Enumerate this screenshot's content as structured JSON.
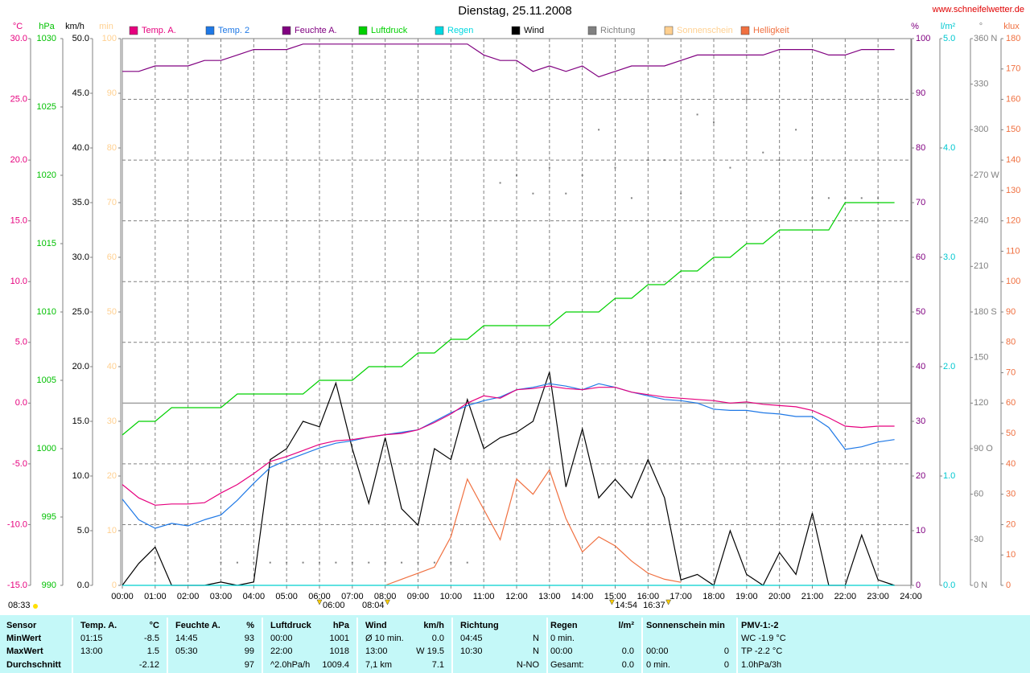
{
  "chart_data": {
    "type": "line",
    "title": "Dienstag, 25.11.2008",
    "source": "www.schneifelwetter.de",
    "grid": true,
    "xlim": [
      0,
      24
    ],
    "xticks": [
      {
        "value": 0,
        "label": "00:00"
      },
      {
        "value": 1,
        "label": "01:00"
      },
      {
        "value": 2,
        "label": "02:00"
      },
      {
        "value": 3,
        "label": "03:00"
      },
      {
        "value": 4,
        "label": "04:00"
      },
      {
        "value": 5,
        "label": "05:00"
      },
      {
        "value": 6,
        "label": "06:00"
      },
      {
        "value": 7,
        "label": "07:00"
      },
      {
        "value": 8,
        "label": "08:00"
      },
      {
        "value": 9,
        "label": "09:00"
      },
      {
        "value": 10,
        "label": "10:00"
      },
      {
        "value": 11,
        "label": "11:00"
      },
      {
        "value": 12,
        "label": "12:00"
      },
      {
        "value": 13,
        "label": "13:00"
      },
      {
        "value": 14,
        "label": "14:00"
      },
      {
        "value": 15,
        "label": "15:00"
      },
      {
        "value": 16,
        "label": "16:00"
      },
      {
        "value": 17,
        "label": "17:00"
      },
      {
        "value": 18,
        "label": "18:00"
      },
      {
        "value": 19,
        "label": "19:00"
      },
      {
        "value": 20,
        "label": "20:00"
      },
      {
        "value": 21,
        "label": "21:00"
      },
      {
        "value": 22,
        "label": "22:00"
      },
      {
        "value": 23,
        "label": "23:00"
      },
      {
        "value": 24,
        "label": "24:00"
      }
    ],
    "x": [
      0,
      0.5,
      1,
      1.5,
      2,
      2.5,
      3,
      3.5,
      4,
      4.5,
      5,
      5.5,
      6,
      6.5,
      7,
      7.5,
      8,
      8.5,
      9,
      9.5,
      10,
      10.5,
      11,
      11.5,
      12,
      12.5,
      13,
      13.5,
      14,
      14.5,
      15,
      15.5,
      16,
      16.5,
      17,
      17.5,
      18,
      18.5,
      19,
      19.5,
      20,
      20.5,
      21,
      21.5,
      22,
      22.5,
      23,
      23.5
    ],
    "axes": [
      {
        "unit": "°C",
        "side": "left",
        "color": "#e6007e",
        "lim": [
          -15,
          30
        ],
        "ticks": [
          {
            "value": -15,
            "label": "-15.0"
          },
          {
            "value": -10,
            "label": "-10.0"
          },
          {
            "value": -5,
            "label": "-5.0"
          },
          {
            "value": 0,
            "label": "0.0"
          },
          {
            "value": 5,
            "label": "5.0"
          },
          {
            "value": 10,
            "label": "10.0"
          },
          {
            "value": 15,
            "label": "15.0"
          },
          {
            "value": 20,
            "label": "20.0"
          },
          {
            "value": 25,
            "label": "25.0"
          },
          {
            "value": 30,
            "label": "30.0"
          }
        ]
      },
      {
        "unit": "hPa",
        "side": "left",
        "color": "#00c000",
        "lim": [
          990,
          1030
        ],
        "ticks": [
          990,
          995,
          1000,
          1005,
          1010,
          1015,
          1020,
          1025,
          1030
        ]
      },
      {
        "unit": "km/h",
        "side": "left",
        "color": "#000000",
        "lim": [
          0,
          50
        ],
        "ticks": [
          {
            "value": 0,
            "label": "0.0"
          },
          {
            "value": 5,
            "label": "5.0"
          },
          {
            "value": 10,
            "label": "10.0"
          },
          {
            "value": 15,
            "label": "15.0"
          },
          {
            "value": 20,
            "label": "20.0"
          },
          {
            "value": 25,
            "label": "25.0"
          },
          {
            "value": 30,
            "label": "30.0"
          },
          {
            "value": 35,
            "label": "35.0"
          },
          {
            "value": 40,
            "label": "40.0"
          },
          {
            "value": 45,
            "label": "45.0"
          },
          {
            "value": 50,
            "label": "50.0"
          }
        ]
      },
      {
        "unit": "min",
        "side": "left",
        "color": "#ffd090",
        "lim": [
          0,
          100
        ],
        "ticks": [
          0,
          10,
          20,
          30,
          40,
          50,
          60,
          70,
          80,
          90,
          100
        ]
      },
      {
        "unit": "%",
        "side": "right",
        "color": "#800080",
        "lim": [
          0,
          100
        ],
        "ticks": [
          0,
          10,
          20,
          30,
          40,
          50,
          60,
          70,
          80,
          90,
          100
        ]
      },
      {
        "unit": "l/m²",
        "side": "right",
        "color": "#00c8d0",
        "lim": [
          0,
          5
        ],
        "ticks": [
          {
            "value": 0,
            "label": "0.0"
          },
          {
            "value": 1,
            "label": "1.0"
          },
          {
            "value": 2,
            "label": "2.0"
          },
          {
            "value": 3,
            "label": "3.0"
          },
          {
            "value": 4,
            "label": "4.0"
          },
          {
            "value": 5,
            "label": "5.0"
          }
        ]
      },
      {
        "unit": "°",
        "side": "right",
        "color": "#808080",
        "lim": [
          0,
          360
        ],
        "ticks": [
          {
            "value": 0,
            "label": "0 N"
          },
          30,
          60,
          {
            "value": 90,
            "label": "90 O"
          },
          120,
          150,
          {
            "value": 180,
            "label": "180 S"
          },
          210,
          240,
          {
            "value": 270,
            "label": "270 W"
          },
          300,
          330,
          {
            "value": 360,
            "label": "360 N"
          }
        ]
      },
      {
        "unit": "klux",
        "side": "right",
        "color": "#f07040",
        "lim": [
          0,
          180
        ],
        "ticks": [
          0,
          10,
          20,
          30,
          40,
          50,
          60,
          70,
          80,
          90,
          100,
          110,
          120,
          130,
          140,
          150,
          160,
          170,
          180
        ]
      }
    ],
    "series": [
      {
        "name": "Temp. A.",
        "color": "#e6007e",
        "axis": "°C",
        "style": "line",
        "values": [
          -6.7,
          -7.8,
          -8.4,
          -8.3,
          -8.3,
          -8.2,
          -7.4,
          -6.7,
          -5.8,
          -4.8,
          -4.4,
          -3.9,
          -3.4,
          -3.1,
          -3.0,
          -2.8,
          -2.6,
          -2.5,
          -2.2,
          -1.6,
          -0.9,
          0.0,
          0.6,
          0.4,
          1.1,
          1.2,
          1.4,
          1.2,
          1.1,
          1.3,
          1.3,
          0.9,
          0.7,
          0.5,
          0.4,
          0.3,
          0.2,
          0.0,
          0.1,
          -0.1,
          -0.2,
          -0.3,
          -0.6,
          -1.2,
          -1.9,
          -2.0,
          -1.9,
          -1.9
        ]
      },
      {
        "name": "Temp. 2",
        "color": "#1e78e6",
        "axis": "°C",
        "style": "line",
        "values": [
          -7.9,
          -9.6,
          -10.3,
          -9.9,
          -10.1,
          -9.6,
          -9.2,
          -8.0,
          -6.6,
          -5.3,
          -4.7,
          -4.2,
          -3.7,
          -3.3,
          -3.1,
          -2.8,
          -2.6,
          -2.4,
          -2.2,
          -1.5,
          -0.8,
          -0.2,
          0.2,
          0.5,
          1.1,
          1.3,
          1.6,
          1.4,
          1.1,
          1.6,
          1.3,
          0.9,
          0.6,
          0.3,
          0.2,
          0.0,
          -0.5,
          -0.6,
          -0.6,
          -0.8,
          -0.9,
          -1.1,
          -1.1,
          -2.0,
          -3.8,
          -3.6,
          -3.2,
          -3.0
        ]
      },
      {
        "name": "Feuchte A.",
        "color": "#800080",
        "axis": "%",
        "style": "line",
        "values": [
          94,
          94,
          95,
          95,
          95,
          96,
          96,
          97,
          98,
          98,
          98,
          99,
          99,
          99,
          99,
          99,
          99,
          99,
          99,
          99,
          99,
          99,
          97,
          96,
          96,
          94,
          95,
          94,
          95,
          93,
          94,
          95,
          95,
          95,
          96,
          97,
          97,
          97,
          97,
          97,
          98,
          98,
          98,
          97,
          97,
          98,
          98,
          98
        ]
      },
      {
        "name": "Luftdruck",
        "color": "#00d000",
        "axis": "hPa",
        "style": "line",
        "values": [
          1001,
          1002,
          1002,
          1003,
          1003,
          1003,
          1003,
          1004,
          1004,
          1004,
          1004,
          1004,
          1005,
          1005,
          1005,
          1006,
          1006,
          1006,
          1007,
          1007,
          1008,
          1008,
          1009,
          1009,
          1009,
          1009,
          1009,
          1010,
          1010,
          1010,
          1011,
          1011,
          1012,
          1012,
          1013,
          1013,
          1014,
          1014,
          1015,
          1015,
          1016,
          1016,
          1016,
          1016,
          1018,
          1018,
          1018,
          1018
        ]
      },
      {
        "name": "Regen",
        "color": "#00d8e0",
        "axis": "l/m²",
        "style": "line",
        "values": [
          0,
          0,
          0,
          0,
          0,
          0,
          0,
          0,
          0,
          0,
          0,
          0,
          0,
          0,
          0,
          0,
          0,
          0,
          0,
          0,
          0,
          0,
          0,
          0,
          0,
          0,
          0,
          0,
          0,
          0,
          0,
          0,
          0,
          0,
          0,
          0,
          0,
          0,
          0,
          0,
          0,
          0,
          0,
          0,
          0,
          0,
          0,
          0
        ]
      },
      {
        "name": "Wind",
        "color": "#000000",
        "axis": "km/h",
        "style": "line",
        "values": [
          0,
          2,
          3.5,
          0,
          0,
          0,
          0.3,
          0,
          0.3,
          11.5,
          12.5,
          15,
          14.5,
          18.5,
          12.5,
          7.5,
          13.5,
          7,
          5.5,
          12.5,
          11.5,
          17,
          12.5,
          13.5,
          14,
          15,
          19.5,
          9,
          14.3,
          8,
          9.7,
          8,
          11.5,
          8,
          0.5,
          1,
          0,
          5,
          1,
          0,
          3,
          1,
          6.6,
          0,
          0,
          4.6,
          0.5,
          0
        ]
      },
      {
        "name": "Richtung",
        "color": "#808080",
        "axis": "°",
        "style": "dots",
        "values": [
          null,
          null,
          15,
          null,
          null,
          null,
          15,
          15,
          15,
          15,
          15,
          15,
          15,
          15,
          15,
          15,
          15,
          15,
          15,
          15,
          15,
          15,
          null,
          265,
          270,
          258,
          275,
          258,
          270,
          300,
          275,
          255,
          280,
          280,
          258,
          310,
          305,
          275,
          320,
          285,
          280,
          300,
          255,
          255,
          255,
          255,
          255,
          null
        ]
      },
      {
        "name": "Sonnenschein",
        "color": "#ffd090",
        "axis": "min",
        "style": "line",
        "values": [
          0,
          0,
          0,
          0,
          0,
          0,
          0,
          0,
          0,
          0,
          0,
          0,
          0,
          0,
          0,
          0,
          0,
          0,
          0,
          0,
          0,
          0,
          0,
          0,
          0,
          0,
          0,
          0,
          0,
          0,
          0,
          0,
          0,
          0,
          0,
          0,
          0,
          0,
          0,
          0,
          0,
          0,
          0,
          0,
          0,
          0,
          0,
          0
        ]
      },
      {
        "name": "Helligkeit",
        "color": "#f07040",
        "axis": "klux",
        "style": "line",
        "values": [
          null,
          null,
          null,
          null,
          null,
          null,
          null,
          null,
          null,
          null,
          null,
          null,
          null,
          null,
          null,
          null,
          0,
          2,
          4,
          6,
          16,
          35,
          25,
          15,
          35,
          30,
          38,
          22,
          11,
          16,
          13,
          8,
          4,
          2,
          1,
          null,
          null,
          null,
          null,
          null,
          null,
          null,
          null,
          null,
          null,
          null,
          null,
          null
        ]
      }
    ],
    "annotations": [
      {
        "x": 6,
        "label": "06:00"
      },
      {
        "x": 8.07,
        "label": "08:04"
      },
      {
        "x": 14.9,
        "label": "14:54"
      },
      {
        "x": 16.62,
        "label": "16:37"
      }
    ],
    "day_length": "08:33"
  },
  "table": {
    "rows": [
      [
        "Sensor",
        "Temp. A.",
        "°C",
        "Feuchte A.",
        "%",
        "Luftdruck",
        "hPa",
        "Wind",
        "km/h",
        "Richtung",
        null,
        "Regen",
        "l/m²",
        "Sonnenschein min",
        null,
        "PMV-1:-2"
      ],
      [
        "MinWert",
        "01:15",
        "-8.5",
        "14:45",
        "93",
        "00:00",
        "1001",
        "Ø 10 min.",
        "0.0",
        "04:45",
        "N",
        "0 min.",
        null,
        null,
        null,
        "WC -1.9 °C"
      ],
      [
        "MaxWert",
        "13:00",
        "1.5",
        "05:30",
        "99",
        "22:00",
        "1018",
        "13:00",
        "W 19.5",
        "10:30",
        "N",
        "00:00",
        "0.0",
        "00:00",
        "0",
        "TP -2.2 °C"
      ],
      [
        "Durchschnitt",
        null,
        "-2.12",
        null,
        "97",
        "^2.0hPa/h",
        "1009.4",
        "7,1 km",
        "7.1",
        null,
        "N-NO",
        "Gesamt:",
        "0.0",
        "0 min.",
        "0",
        "1.0hPa/3h"
      ]
    ]
  }
}
